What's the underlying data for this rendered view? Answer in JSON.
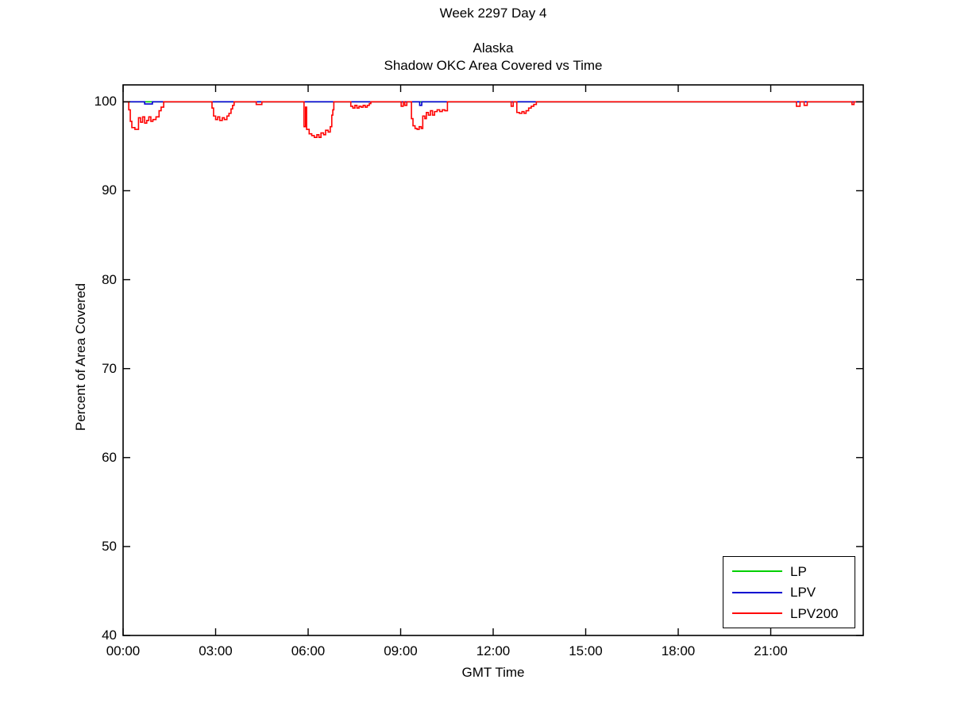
{
  "figure": {
    "suptitle": "Week 2297 Day 4",
    "title_line1": "Alaska",
    "title_line2": "Shadow OKC Area Covered vs Time"
  },
  "chart_data": {
    "type": "line",
    "title": "Alaska — Shadow OKC Area Covered vs Time",
    "xlabel": "GMT Time",
    "ylabel": "Percent of Area Covered",
    "x_unit": "minutes_of_day",
    "xlim": [
      0,
      1440
    ],
    "ylim": [
      40,
      101.9
    ],
    "grid": false,
    "legend_position": "bottom-right",
    "x_ticks": [
      0,
      180,
      360,
      540,
      720,
      900,
      1080,
      1260
    ],
    "x_tick_labels": [
      "00:00",
      "03:00",
      "06:00",
      "09:00",
      "12:00",
      "15:00",
      "18:00",
      "21:00"
    ],
    "y_ticks": [
      40,
      50,
      60,
      70,
      80,
      90,
      100
    ],
    "y_tick_labels": [
      "40",
      "50",
      "60",
      "70",
      "80",
      "90",
      "100"
    ],
    "axis_color": "#000000",
    "series": [
      {
        "name": "LP",
        "color": "#00d000",
        "step_points": [
          [
            0,
            100
          ],
          [
            1440,
            100
          ]
        ]
      },
      {
        "name": "LPV",
        "color": "#0000d0",
        "step_points": [
          [
            0,
            100
          ],
          [
            42,
            99.75
          ],
          [
            57,
            100
          ],
          [
            577,
            99.6
          ],
          [
            581,
            100
          ],
          [
            1440,
            100
          ]
        ]
      },
      {
        "name": "LPV200",
        "color": "#ff0000",
        "step_points": [
          [
            0,
            100
          ],
          [
            11,
            99.1
          ],
          [
            14,
            97.8
          ],
          [
            17,
            97.1
          ],
          [
            23,
            96.9
          ],
          [
            30,
            98.2
          ],
          [
            34,
            97.7
          ],
          [
            38,
            98.3
          ],
          [
            42,
            97.6
          ],
          [
            46,
            97.9
          ],
          [
            50,
            98.3
          ],
          [
            54,
            97.8
          ],
          [
            58,
            98.0
          ],
          [
            64,
            98.3
          ],
          [
            70,
            99.0
          ],
          [
            74,
            99.4
          ],
          [
            79,
            100
          ],
          [
            173,
            99.3
          ],
          [
            176,
            98.4
          ],
          [
            180,
            98.0
          ],
          [
            184,
            98.3
          ],
          [
            188,
            97.9
          ],
          [
            193,
            98.2
          ],
          [
            197,
            98.0
          ],
          [
            202,
            98.4
          ],
          [
            206,
            98.7
          ],
          [
            210,
            99.2
          ],
          [
            213,
            99.6
          ],
          [
            216,
            100
          ],
          [
            259,
            99.7
          ],
          [
            270,
            100
          ],
          [
            352,
            97.2
          ],
          [
            355,
            99.4
          ],
          [
            357,
            96.9
          ],
          [
            362,
            96.4
          ],
          [
            367,
            96.2
          ],
          [
            372,
            96.0
          ],
          [
            377,
            96.3
          ],
          [
            381,
            96.0
          ],
          [
            385,
            96.5
          ],
          [
            390,
            96.3
          ],
          [
            394,
            96.8
          ],
          [
            399,
            96.6
          ],
          [
            403,
            97.2
          ],
          [
            406,
            98.5
          ],
          [
            408,
            99.1
          ],
          [
            410,
            100
          ],
          [
            443,
            99.5
          ],
          [
            447,
            99.3
          ],
          [
            451,
            99.6
          ],
          [
            455,
            99.3
          ],
          [
            459,
            99.5
          ],
          [
            463,
            99.4
          ],
          [
            467,
            99.6
          ],
          [
            471,
            99.4
          ],
          [
            475,
            99.6
          ],
          [
            479,
            99.8
          ],
          [
            482,
            100
          ],
          [
            541,
            99.5
          ],
          [
            545,
            100
          ],
          [
            548,
            99.6
          ],
          [
            552,
            100
          ],
          [
            561,
            98.1
          ],
          [
            564,
            97.3
          ],
          [
            568,
            97.0
          ],
          [
            572,
            96.9
          ],
          [
            576,
            97.2
          ],
          [
            580,
            97.0
          ],
          [
            583,
            98.4
          ],
          [
            587,
            98.1
          ],
          [
            590,
            98.8
          ],
          [
            594,
            98.5
          ],
          [
            598,
            99.0
          ],
          [
            602,
            98.5
          ],
          [
            606,
            98.9
          ],
          [
            611,
            99.1
          ],
          [
            616,
            98.9
          ],
          [
            621,
            99.1
          ],
          [
            626,
            99.0
          ],
          [
            631,
            100
          ],
          [
            755,
            99.5
          ],
          [
            759,
            100
          ],
          [
            766,
            98.8
          ],
          [
            771,
            98.7
          ],
          [
            776,
            98.9
          ],
          [
            780,
            98.7
          ],
          [
            784,
            99.0
          ],
          [
            789,
            99.3
          ],
          [
            794,
            99.5
          ],
          [
            799,
            99.7
          ],
          [
            804,
            100
          ],
          [
            1310,
            99.5
          ],
          [
            1317,
            100
          ],
          [
            1325,
            99.6
          ],
          [
            1331,
            100
          ],
          [
            1418,
            99.7
          ],
          [
            1422,
            100
          ],
          [
            1440,
            100
          ]
        ]
      }
    ]
  },
  "legend": {
    "entries": [
      {
        "label": "LP",
        "color": "#00d000"
      },
      {
        "label": "LPV",
        "color": "#0000d0"
      },
      {
        "label": "LPV200",
        "color": "#ff0000"
      }
    ]
  }
}
